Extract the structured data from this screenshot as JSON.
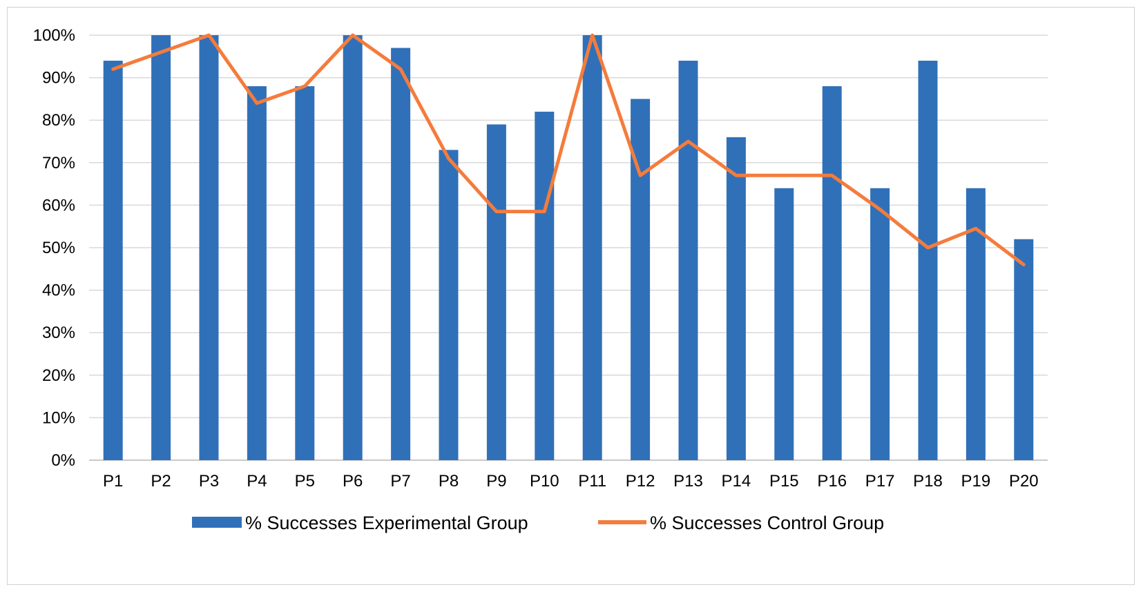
{
  "chart_data": {
    "type": "bar",
    "categories": [
      "P1",
      "P2",
      "P3",
      "P4",
      "P5",
      "P6",
      "P7",
      "P8",
      "P9",
      "P10",
      "P11",
      "P12",
      "P13",
      "P14",
      "P15",
      "P16",
      "P17",
      "P18",
      "P19",
      "P20"
    ],
    "series": [
      {
        "name": "% Successes Experimental Group",
        "type": "bar",
        "color": "#3070b8",
        "values": [
          94,
          100,
          100,
          88,
          88,
          100,
          97,
          73,
          79,
          82,
          100,
          85,
          94,
          76,
          64,
          88,
          64,
          94,
          64,
          52
        ]
      },
      {
        "name": "% Successes Control Group",
        "type": "line",
        "color": "#f47c3c",
        "values": [
          92,
          96,
          100,
          84,
          88,
          100,
          92,
          71,
          58.5,
          58.5,
          100,
          67,
          75,
          67,
          67,
          67,
          59,
          50,
          54.5,
          46
        ]
      }
    ],
    "yticks": [
      "0%",
      "10%",
      "20%",
      "30%",
      "40%",
      "50%",
      "60%",
      "70%",
      "80%",
      "90%",
      "100%"
    ],
    "ylim": [
      0,
      100
    ],
    "grid": true,
    "legend_position": "bottom",
    "title": "",
    "xlabel": "",
    "ylabel": ""
  }
}
